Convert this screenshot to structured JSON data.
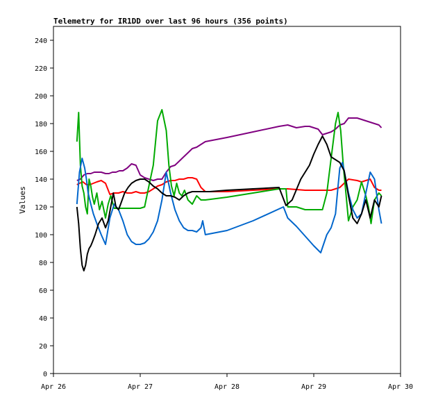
{
  "chart_data": {
    "type": "line",
    "title": "Telemetry for IR1DD over last 96 hours (356 points)",
    "xlabel": "",
    "ylabel": "Values",
    "xlim": [
      0,
      4
    ],
    "ylim": [
      0,
      250
    ],
    "x_ticks": [
      {
        "value": 0,
        "label": "Apr 26"
      },
      {
        "value": 1,
        "label": "Apr 27"
      },
      {
        "value": 2,
        "label": "Apr 28"
      },
      {
        "value": 3,
        "label": "Apr 29"
      },
      {
        "value": 4,
        "label": "Apr 30"
      }
    ],
    "y_ticks": [
      0,
      20,
      40,
      60,
      80,
      100,
      120,
      140,
      160,
      180,
      200,
      220,
      240
    ],
    "grid": false,
    "legend": false,
    "x_units": "days since Apr 26",
    "series": [
      {
        "color": "#800080",
        "x": [
          0.27,
          0.31,
          0.35,
          0.39,
          0.43,
          0.47,
          0.51,
          0.55,
          0.6,
          0.64,
          0.68,
          0.72,
          0.76,
          0.8,
          0.85,
          0.9,
          0.95,
          1.0,
          1.05,
          1.1,
          1.15,
          1.2,
          1.25,
          1.3,
          1.35,
          1.4,
          1.45,
          1.5,
          1.55,
          1.6,
          1.65,
          1.7,
          1.75,
          2.0,
          2.3,
          2.6,
          2.7,
          2.8,
          2.9,
          2.95,
          3.0,
          3.05,
          3.1,
          3.15,
          3.2,
          3.25,
          3.3,
          3.35,
          3.4,
          3.45,
          3.5,
          3.55,
          3.6,
          3.65,
          3.7,
          3.75,
          3.78
        ],
        "y": [
          139,
          140,
          143,
          144,
          144,
          145,
          145,
          145,
          144,
          144,
          145,
          145,
          146,
          146,
          148,
          151,
          150,
          143,
          141,
          140,
          139,
          140,
          140,
          145,
          149,
          150,
          153,
          156,
          159,
          162,
          163,
          165,
          167,
          170,
          174,
          178,
          179,
          177,
          178,
          178,
          177,
          176,
          172,
          173,
          174,
          176,
          179,
          180,
          184,
          184,
          184,
          183,
          182,
          181,
          180,
          179,
          177
        ]
      },
      {
        "color": "#ff0000",
        "x": [
          0.27,
          0.3,
          0.34,
          0.38,
          0.42,
          0.46,
          0.5,
          0.55,
          0.6,
          0.65,
          0.7,
          0.75,
          0.8,
          0.85,
          0.9,
          0.95,
          1.0,
          1.05,
          1.1,
          1.15,
          1.2,
          1.25,
          1.3,
          1.35,
          1.4,
          1.45,
          1.5,
          1.55,
          1.6,
          1.65,
          1.7,
          1.75,
          1.8,
          2.0,
          2.3,
          2.6,
          2.7,
          2.9,
          3.2,
          3.3,
          3.4,
          3.5,
          3.55,
          3.6,
          3.65,
          3.7,
          3.75,
          3.78
        ],
        "y": [
          136,
          137,
          138,
          136,
          136,
          137,
          138,
          139,
          137,
          129,
          130,
          130,
          131,
          130,
          130,
          131,
          130,
          130,
          131,
          133,
          135,
          136,
          138,
          139,
          139,
          140,
          140,
          141,
          141,
          140,
          134,
          131,
          131,
          131,
          132,
          133,
          133,
          132,
          132,
          134,
          140,
          139,
          138,
          139,
          140,
          134,
          132,
          132
        ]
      },
      {
        "color": "#00aa00",
        "x": [
          0.27,
          0.29,
          0.31,
          0.33,
          0.35,
          0.37,
          0.39,
          0.41,
          0.43,
          0.45,
          0.47,
          0.5,
          0.53,
          0.56,
          0.6,
          0.63,
          0.66,
          0.7,
          0.75,
          0.8,
          0.85,
          0.9,
          0.95,
          1.0,
          1.05,
          1.1,
          1.15,
          1.2,
          1.25,
          1.3,
          1.33,
          1.36,
          1.39,
          1.42,
          1.45,
          1.48,
          1.51,
          1.55,
          1.6,
          1.65,
          1.7,
          1.75,
          2.0,
          2.3,
          2.6,
          2.68,
          2.7,
          2.8,
          2.9,
          3.0,
          3.1,
          3.15,
          3.2,
          3.25,
          3.28,
          3.31,
          3.34,
          3.37,
          3.4,
          3.45,
          3.5,
          3.55,
          3.6,
          3.63,
          3.66,
          3.7,
          3.75,
          3.78
        ],
        "y": [
          167,
          188,
          150,
          135,
          130,
          120,
          115,
          140,
          135,
          127,
          122,
          130,
          118,
          124,
          112,
          122,
          128,
          119,
          119,
          119,
          119,
          119,
          119,
          119,
          120,
          135,
          150,
          182,
          190,
          175,
          150,
          135,
          128,
          137,
          130,
          128,
          132,
          125,
          122,
          128,
          125,
          125,
          127,
          130,
          133,
          133,
          120,
          120,
          118,
          118,
          118,
          130,
          155,
          180,
          188,
          175,
          150,
          130,
          110,
          120,
          125,
          138,
          128,
          120,
          108,
          125,
          130,
          128
        ]
      },
      {
        "color": "#0066cc",
        "x": [
          0.27,
          0.3,
          0.33,
          0.36,
          0.38,
          0.4,
          0.43,
          0.46,
          0.5,
          0.55,
          0.6,
          0.65,
          0.7,
          0.75,
          0.8,
          0.85,
          0.9,
          0.95,
          1.0,
          1.05,
          1.1,
          1.15,
          1.2,
          1.25,
          1.3,
          1.35,
          1.4,
          1.45,
          1.5,
          1.55,
          1.6,
          1.65,
          1.7,
          1.72,
          1.75,
          2.0,
          2.3,
          2.65,
          2.7,
          2.8,
          3.0,
          3.08,
          3.15,
          3.2,
          3.25,
          3.28,
          3.3,
          3.33,
          3.36,
          3.4,
          3.45,
          3.5,
          3.55,
          3.6,
          3.65,
          3.7,
          3.75,
          3.78
        ],
        "y": [
          122,
          145,
          155,
          148,
          140,
          130,
          122,
          115,
          108,
          100,
          93,
          112,
          122,
          118,
          110,
          100,
          95,
          93,
          93,
          94,
          97,
          102,
          110,
          125,
          145,
          130,
          118,
          110,
          105,
          103,
          103,
          102,
          105,
          110,
          100,
          103,
          110,
          120,
          112,
          106,
          92,
          87,
          100,
          105,
          115,
          135,
          148,
          152,
          143,
          130,
          118,
          112,
          115,
          130,
          145,
          140,
          118,
          108
        ]
      },
      {
        "color": "#000000",
        "x": [
          0.27,
          0.29,
          0.31,
          0.33,
          0.35,
          0.37,
          0.39,
          0.41,
          0.43,
          0.45,
          0.48,
          0.52,
          0.56,
          0.6,
          0.63,
          0.66,
          0.69,
          0.72,
          0.75,
          0.78,
          0.82,
          0.86,
          0.9,
          0.95,
          1.0,
          1.05,
          1.1,
          1.15,
          1.2,
          1.25,
          1.3,
          1.35,
          1.4,
          1.45,
          1.5,
          1.55,
          1.6,
          1.65,
          1.7,
          1.75,
          1.8,
          2.0,
          2.3,
          2.6,
          2.68,
          2.75,
          2.85,
          2.95,
          3.0,
          3.05,
          3.1,
          3.15,
          3.2,
          3.25,
          3.3,
          3.35,
          3.4,
          3.45,
          3.5,
          3.55,
          3.6,
          3.65,
          3.7,
          3.75,
          3.78
        ],
        "y": [
          120,
          108,
          90,
          78,
          74,
          78,
          86,
          90,
          92,
          95,
          100,
          108,
          112,
          105,
          110,
          120,
          130,
          120,
          118,
          123,
          130,
          134,
          137,
          139,
          140,
          140,
          138,
          135,
          133,
          130,
          128,
          128,
          127,
          125,
          128,
          130,
          131,
          131,
          131,
          131,
          131,
          132,
          133,
          134,
          121,
          125,
          140,
          150,
          158,
          165,
          171,
          165,
          156,
          154,
          152,
          146,
          128,
          112,
          108,
          115,
          125,
          112,
          125,
          120,
          128
        ]
      }
    ]
  }
}
